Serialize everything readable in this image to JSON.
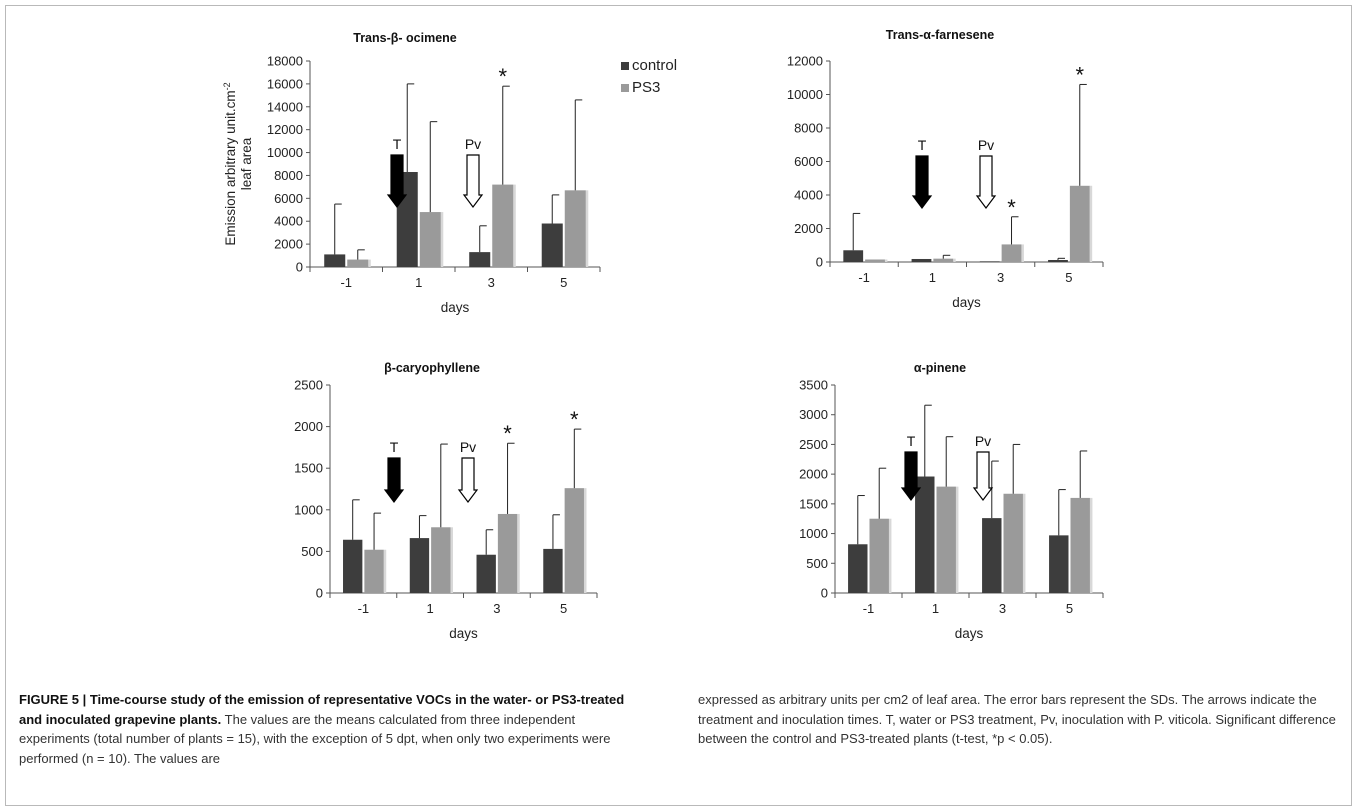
{
  "chart_data": [
    {
      "type": "bar",
      "title": "Trans-β- ocimene",
      "ylabel_line1": "Emission arbitrary unit.cm",
      "ylabel_sup": "-2",
      "ylabel_line2": "leaf area",
      "xlabel": "days",
      "categories": [
        "-1",
        "1",
        "3",
        "5"
      ],
      "ylim": [
        0,
        18000
      ],
      "yticks": [
        "0",
        "2000",
        "4000",
        "6000",
        "8000",
        "10000",
        "12000",
        "14000",
        "16000",
        "18000"
      ],
      "series": [
        {
          "name": "control",
          "color": "#3d3d3d",
          "values": [
            1100,
            8300,
            1300,
            3800
          ],
          "errors": [
            4400,
            7700,
            2300,
            2500
          ]
        },
        {
          "name": "PS3",
          "color": "#9a9a9a",
          "values": [
            650,
            4800,
            7200,
            6700
          ],
          "errors": [
            850,
            7900,
            8600,
            7900
          ]
        }
      ],
      "significance": [
        {
          "category": "3",
          "series": "PS3",
          "label": "*"
        }
      ],
      "legend_position": "top-right",
      "arrows": [
        {
          "label": "T",
          "style": "filled",
          "position_between": [
            "-1",
            "1"
          ]
        },
        {
          "label": "Pv",
          "style": "hollow",
          "position_between": [
            "1",
            "3"
          ]
        }
      ]
    },
    {
      "type": "bar",
      "title": "Trans-α-farnesene",
      "xlabel": "days",
      "categories": [
        "-1",
        "1",
        "3",
        "5"
      ],
      "ylim": [
        0,
        12000
      ],
      "yticks": [
        "0",
        "2000",
        "4000",
        "6000",
        "8000",
        "10000",
        "12000"
      ],
      "series": [
        {
          "name": "control",
          "color": "#3d3d3d",
          "values": [
            700,
            180,
            40,
            120
          ],
          "errors": [
            2200,
            0,
            0,
            100
          ]
        },
        {
          "name": "PS3",
          "color": "#9a9a9a",
          "values": [
            150,
            200,
            1050,
            4550
          ],
          "errors": [
            0,
            200,
            1650,
            6050
          ]
        }
      ],
      "significance": [
        {
          "category": "3",
          "series": "PS3",
          "label": "*"
        },
        {
          "category": "5",
          "series": "PS3",
          "label": "*"
        }
      ],
      "arrows": [
        {
          "label": "T",
          "style": "filled",
          "position_between": [
            "-1",
            "1"
          ]
        },
        {
          "label": "Pv",
          "style": "hollow",
          "position_between": [
            "1",
            "3"
          ]
        }
      ]
    },
    {
      "type": "bar",
      "title": "β-caryophyllene",
      "xlabel": "days",
      "categories": [
        "-1",
        "1",
        "3",
        "5"
      ],
      "ylim": [
        0,
        2500
      ],
      "yticks": [
        "0",
        "500",
        "1000",
        "1500",
        "2000",
        "2500"
      ],
      "series": [
        {
          "name": "control",
          "color": "#3d3d3d",
          "values": [
            640,
            660,
            460,
            530
          ],
          "errors": [
            480,
            270,
            300,
            410
          ]
        },
        {
          "name": "PS3",
          "color": "#9a9a9a",
          "values": [
            520,
            790,
            950,
            1260
          ],
          "errors": [
            440,
            1000,
            850,
            710
          ]
        }
      ],
      "significance": [
        {
          "category": "3",
          "series": "PS3",
          "label": "*"
        },
        {
          "category": "5",
          "series": "PS3",
          "label": "*"
        }
      ],
      "arrows": [
        {
          "label": "T",
          "style": "filled",
          "position_between": [
            "-1",
            "1"
          ]
        },
        {
          "label": "Pv",
          "style": "hollow",
          "position_between": [
            "1",
            "3"
          ]
        }
      ]
    },
    {
      "type": "bar",
      "title": "α-pinene",
      "xlabel": "days",
      "categories": [
        "-1",
        "1",
        "3",
        "5"
      ],
      "ylim": [
        0,
        3500
      ],
      "yticks": [
        "0",
        "500",
        "1000",
        "1500",
        "2000",
        "2500",
        "3000",
        "3500"
      ],
      "series": [
        {
          "name": "control",
          "color": "#3d3d3d",
          "values": [
            820,
            1960,
            1260,
            970
          ],
          "errors": [
            820,
            1200,
            960,
            770
          ]
        },
        {
          "name": "PS3",
          "color": "#9a9a9a",
          "values": [
            1250,
            1790,
            1670,
            1600
          ],
          "errors": [
            850,
            840,
            830,
            790
          ]
        }
      ],
      "significance": [],
      "arrows": [
        {
          "label": "T",
          "style": "filled",
          "position_between": [
            "-1",
            "1"
          ]
        },
        {
          "label": "Pv",
          "style": "hollow",
          "position_between": [
            "1",
            "3"
          ]
        }
      ]
    }
  ],
  "caption": {
    "figure_label": "FIGURE 5 | Time-course study of the emission of representative VOCs in the water- or PS3-treated and inoculated grapevine plants.",
    "left_text": "The values are the means calculated from three independent experiments (total number of plants = 15), with the exception of 5 dpt, when only two experiments were performed (n = 10). The values are",
    "right_text": "expressed as arbitrary units per cm2 of leaf area. The error bars represent the SDs. The arrows indicate the treatment and inoculation times. T, water or PS3 treatment, Pv, inoculation with P. viticola. Significant difference between the control and PS3-treated plants (t-test, *p < 0.05)."
  }
}
